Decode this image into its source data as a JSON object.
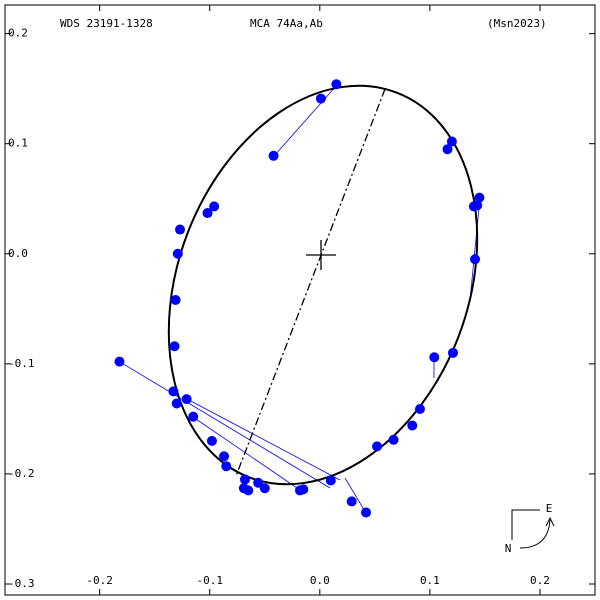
{
  "chart_data": {
    "type": "scatter",
    "title": "WDS 23191-1328",
    "subtitle": "MCA  74Aa,Ab",
    "reference": "(Msn2023)",
    "compass_east": "E",
    "compass_north": "N",
    "x": [
      0.015,
      0.001,
      -0.042,
      0.12,
      0.116,
      0.145,
      0.14,
      0.143,
      -0.096,
      -0.102,
      -0.127,
      -0.129,
      0.141,
      -0.131,
      -0.132,
      0.104,
      0.121,
      -0.182,
      -0.133,
      -0.121,
      -0.13,
      -0.115,
      0.091,
      -0.098,
      0.084,
      0.067,
      0.052,
      -0.087,
      -0.085,
      0.01,
      -0.068,
      -0.069,
      -0.065,
      -0.056,
      -0.05,
      -0.015,
      -0.018,
      0.029,
      0.042
    ],
    "values": [
      0.154,
      0.141,
      0.089,
      0.102,
      0.095,
      0.051,
      0.043,
      0.044,
      0.043,
      0.037,
      0.022,
      0.0,
      -0.005,
      -0.042,
      -0.084,
      -0.094,
      -0.09,
      -0.098,
      -0.125,
      -0.132,
      -0.136,
      -0.148,
      -0.141,
      -0.17,
      -0.156,
      -0.169,
      -0.175,
      -0.184,
      -0.193,
      -0.206,
      -0.205,
      -0.213,
      -0.215,
      -0.208,
      -0.213,
      -0.214,
      -0.215,
      -0.225,
      -0.235
    ],
    "color": "#0000ff",
    "xlim": [
      -0.286,
      0.25
    ],
    "ylim": [
      -0.31,
      0.226
    ],
    "xticks": [
      -0.2,
      -0.1,
      {
        "value": 0,
        "label": "0.0"
      },
      0.1,
      0.2
    ],
    "yticks": [
      0.2,
      0.1,
      {
        "value": 0,
        "label": "0.0"
      },
      -0.1,
      -0.2,
      -0.3
    ],
    "grid": false
  }
}
